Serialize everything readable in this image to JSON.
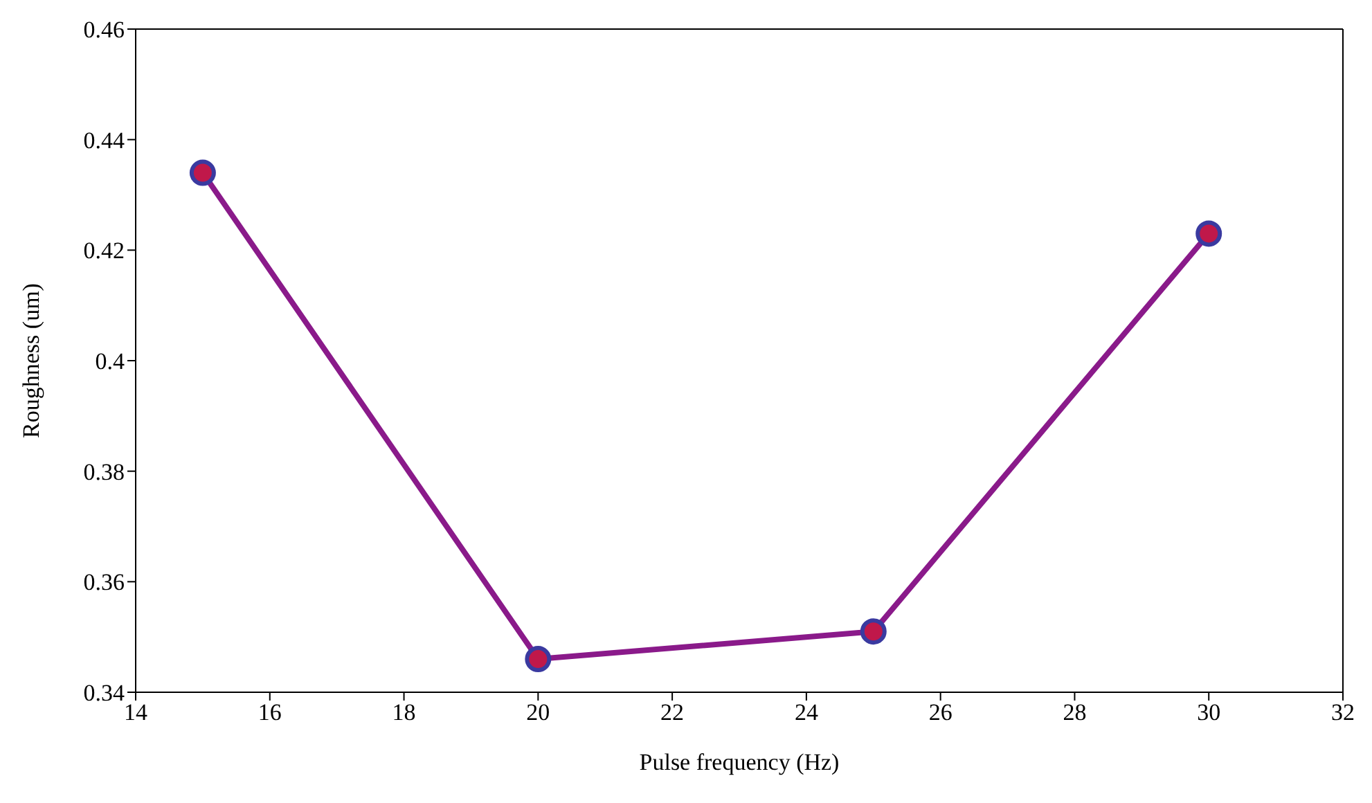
{
  "chart_data": {
    "type": "line",
    "xlabel": "Pulse frequency  (Hz)",
    "ylabel": "Roughness  (um)",
    "x": [
      15,
      20,
      25,
      30
    ],
    "series": [
      {
        "color": "#8a1a8a",
        "values": [
          0.434,
          0.346,
          0.351,
          0.423
        ]
      }
    ],
    "xlim": [
      14,
      32
    ],
    "xticks": [
      14,
      16,
      18,
      20,
      22,
      24,
      26,
      28,
      30,
      32
    ],
    "ylim": [
      0.34,
      0.46
    ],
    "yticks": [
      0.34,
      0.36,
      0.38,
      0.4,
      0.42,
      0.44,
      0.46
    ],
    "marker": "circle",
    "line_style": "solid",
    "grid": false,
    "legend": false
  }
}
